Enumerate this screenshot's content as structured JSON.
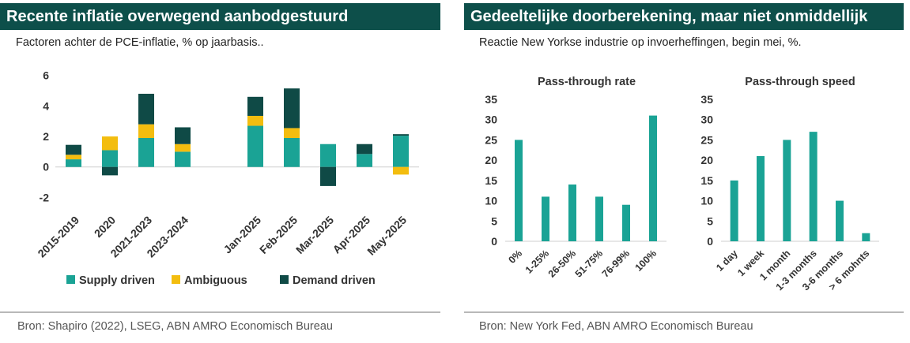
{
  "colors": {
    "header_bg": "#0d4f4a",
    "supply": "#1aa395",
    "ambiguous": "#f3bd0f",
    "demand": "#0f4a46",
    "bar": "#1aa395",
    "axis_text": "#333333"
  },
  "left_panel": {
    "title": "Recente inflatie overwegend aanbodgestuurd",
    "subtitle": "Factoren achter de PCE-inflatie, % op jaarbasis..",
    "source": "Bron: Shapiro (2022), LSEG, ABN AMRO Economisch Bureau"
  },
  "right_panel": {
    "title": "Gedeeltelijke doorberekening, maar niet onmiddellijk",
    "subtitle": "Reactie New Yorkse industrie op invoerheffingen, begin mei, %.",
    "source": "Bron: New York Fed, ABN AMRO Economisch Bureau"
  },
  "chart_data": [
    {
      "type": "bar",
      "stacked": true,
      "title": "",
      "categories": [
        "2015-2019",
        "2020",
        "2021-2023",
        "2023-2024",
        "",
        "Jan-2025",
        "Feb-2025",
        "Mar-2025",
        "Apr-2025",
        "May-2025"
      ],
      "series": [
        {
          "name": "Supply driven",
          "color": "#1aa395",
          "values": [
            0.5,
            1.1,
            1.9,
            1.0,
            null,
            2.7,
            1.9,
            1.5,
            0.85,
            2.05
          ]
        },
        {
          "name": "Ambiguous",
          "color": "#f3bd0f",
          "values": [
            0.3,
            0.9,
            0.9,
            0.5,
            null,
            0.65,
            0.65,
            0.0,
            0.0,
            -0.5
          ]
        },
        {
          "name": "Demand driven",
          "color": "#0f4a46",
          "values": [
            0.65,
            -0.55,
            2.0,
            1.1,
            null,
            1.25,
            2.6,
            -1.25,
            0.65,
            0.1
          ]
        }
      ],
      "yticks": [
        -2,
        0,
        2,
        4,
        6
      ],
      "ylim": [
        -2.6,
        6.4
      ],
      "legend": "bottom"
    },
    {
      "type": "bar",
      "title": "Pass-through rate",
      "categories": [
        "0%",
        "1-25%",
        "26-50%",
        "51-75%",
        "76-99%",
        "100%"
      ],
      "values": [
        25,
        11,
        14,
        11,
        9,
        31
      ],
      "yticks": [
        0,
        5,
        10,
        15,
        20,
        25,
        30,
        35
      ],
      "ylim": [
        0,
        35
      ]
    },
    {
      "type": "bar",
      "title": "Pass-through speed",
      "categories": [
        "1 day",
        "1 week",
        "1 month",
        "1-3 months",
        "3-6 months",
        "> 6 mohnts"
      ],
      "values": [
        15,
        21,
        25,
        27,
        10,
        2
      ],
      "yticks": [
        0,
        5,
        10,
        15,
        20,
        25,
        30,
        35
      ],
      "ylim": [
        0,
        35
      ]
    }
  ]
}
